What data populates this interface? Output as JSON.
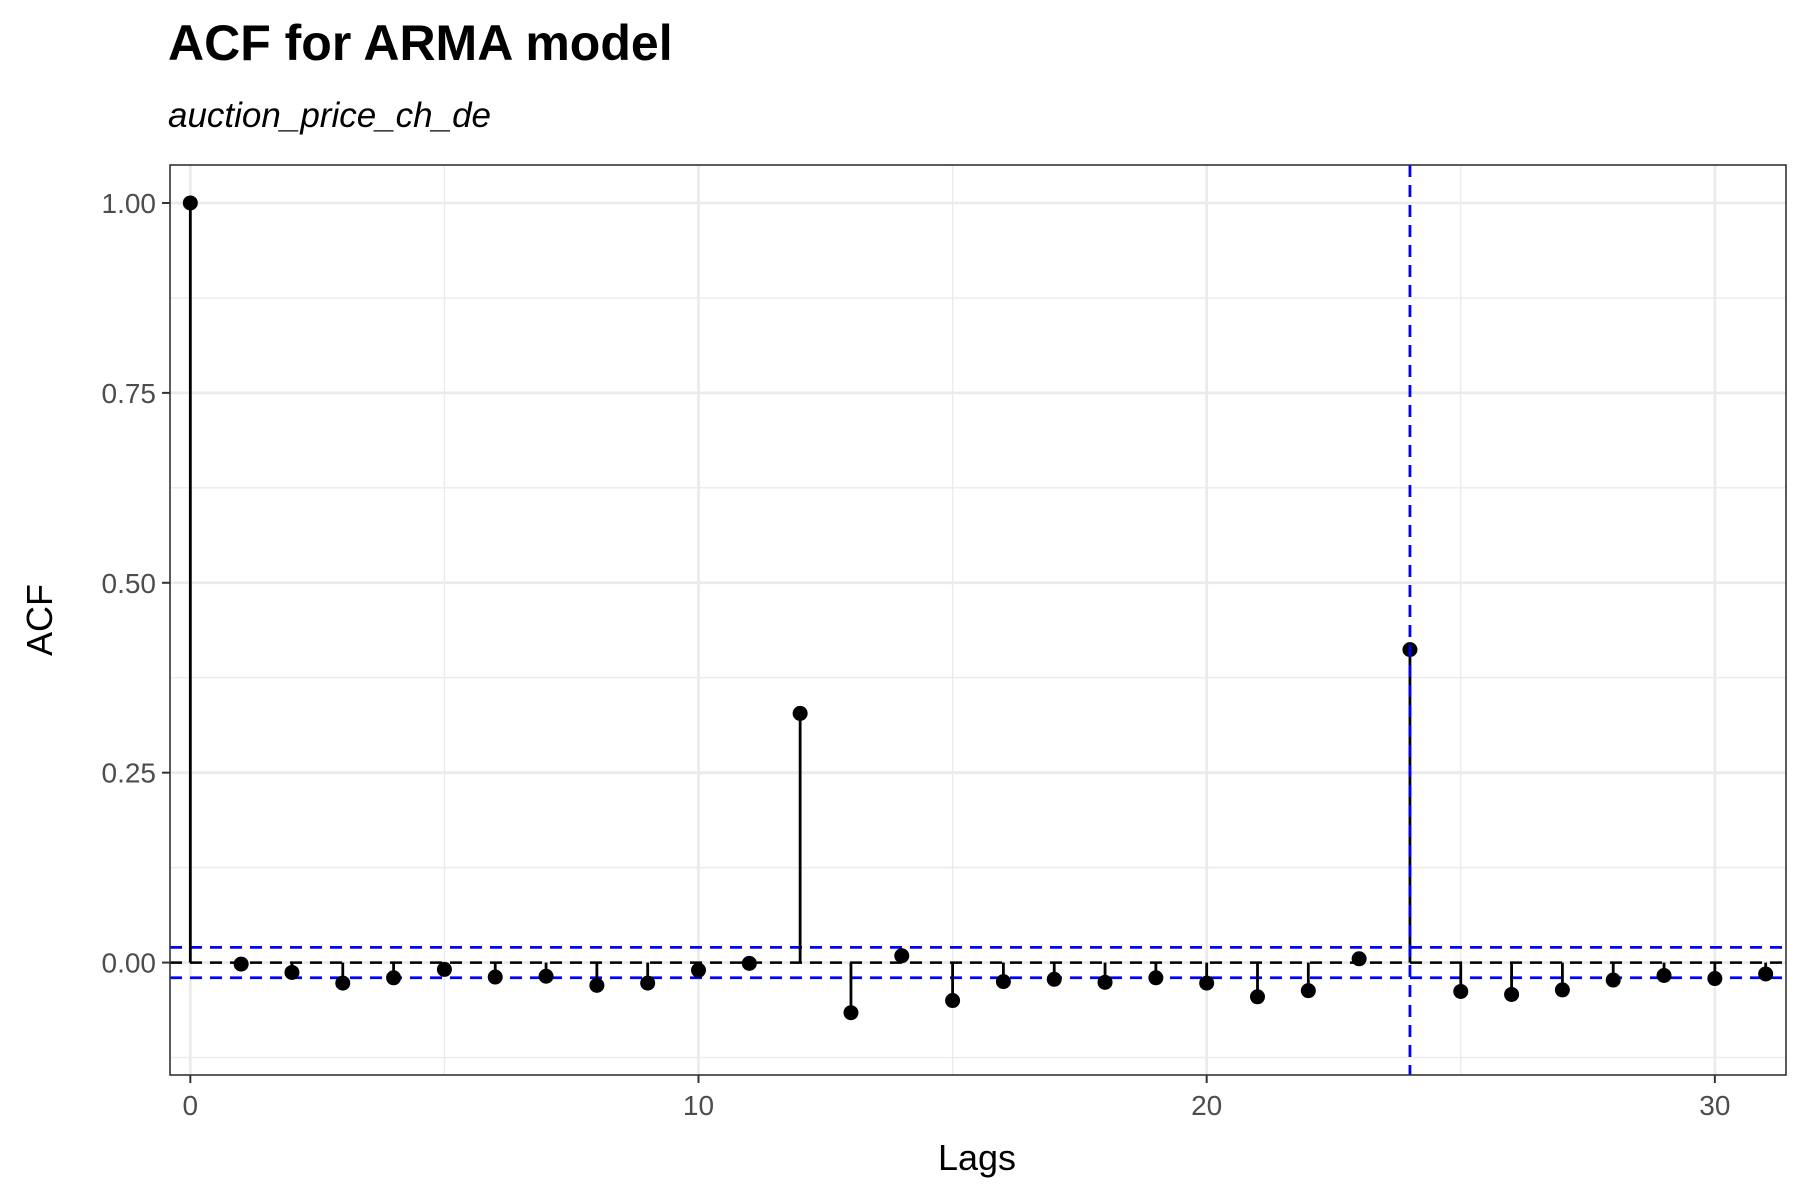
{
  "chart_data": {
    "type": "lollipop",
    "title": "ACF for ARMA model",
    "subtitle": "auction_price_ch_de",
    "xlabel": "Lags",
    "ylabel": "ACF",
    "xlim": [
      -0.4,
      31.4
    ],
    "ylim": [
      -0.148,
      1.05
    ],
    "x_ticks": [
      0,
      10,
      20,
      30
    ],
    "x_tick_labels": [
      "0",
      "10",
      "20",
      "30"
    ],
    "y_ticks": [
      0.0,
      0.25,
      0.5,
      0.75,
      1.0
    ],
    "y_tick_labels": [
      "0.00",
      "0.25",
      "0.50",
      "0.75",
      "1.00"
    ],
    "y_minor_gridlines": [
      -0.125,
      0.125,
      0.375,
      0.625,
      0.875
    ],
    "x_minor_gridlines": [
      5,
      15,
      25
    ],
    "grid": true,
    "lags": [
      0,
      1,
      2,
      3,
      4,
      5,
      6,
      7,
      8,
      9,
      10,
      11,
      12,
      13,
      14,
      15,
      16,
      17,
      18,
      19,
      20,
      21,
      22,
      23,
      24,
      25,
      26,
      27,
      28,
      29,
      30,
      31
    ],
    "acf": [
      1.0,
      -0.002,
      -0.013,
      -0.027,
      -0.02,
      -0.009,
      -0.019,
      -0.018,
      -0.03,
      -0.027,
      -0.01,
      -0.001,
      0.328,
      -0.066,
      0.009,
      -0.05,
      -0.025,
      -0.022,
      -0.026,
      -0.02,
      -0.027,
      -0.045,
      -0.037,
      0.005,
      0.412,
      -0.038,
      -0.042,
      -0.036,
      -0.023,
      -0.017,
      -0.021,
      -0.015
    ],
    "confidence_bounds": [
      0.02,
      -0.02
    ],
    "seasonal_lag_marker": 24,
    "colors": {
      "stem": "#000000",
      "point": "#000000",
      "bounds": "#0000ff",
      "zero_line": "#000000",
      "grid": "#ebebeb",
      "panel_border": "#333333"
    }
  }
}
